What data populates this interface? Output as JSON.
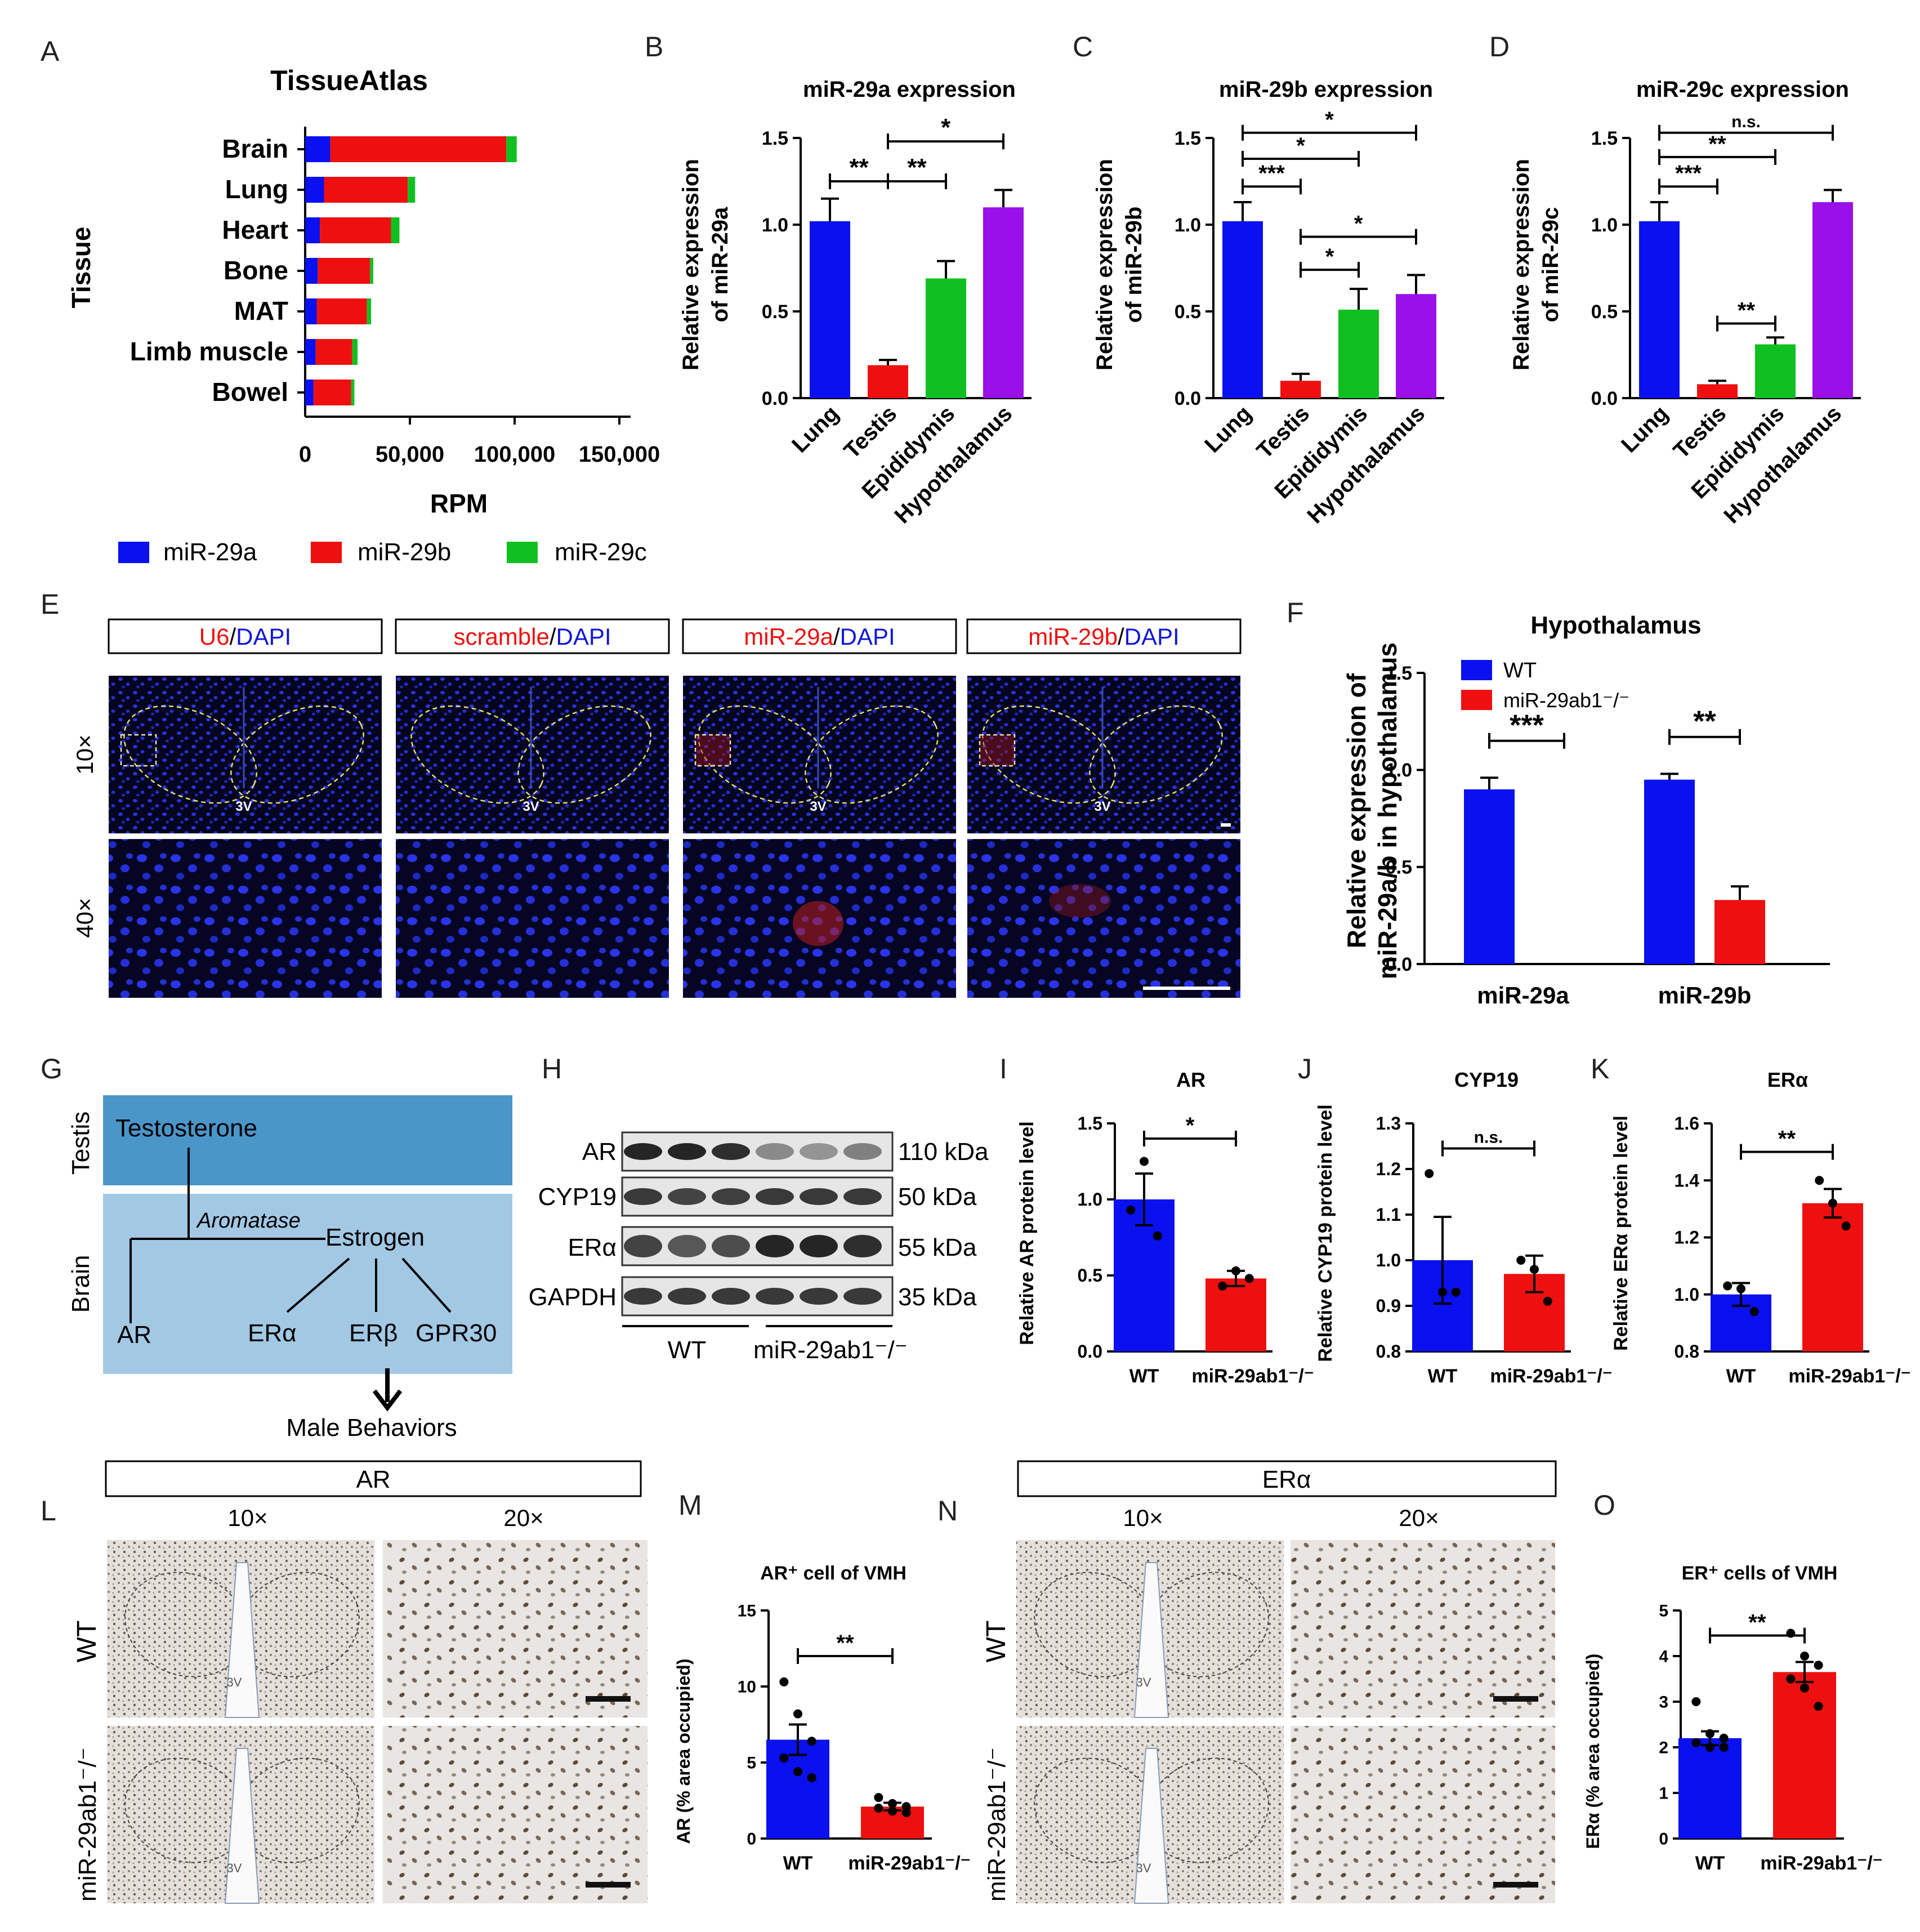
{
  "colors": {
    "blue": "#0a10ee",
    "red": "#ee1010",
    "green": "#10c021",
    "purple": "#9a10e8",
    "dapi": "#1018d8",
    "testis_box": "#4a96c9",
    "brain_box": "#a2c8e4"
  },
  "panel_letters": [
    "A",
    "B",
    "C",
    "D",
    "E",
    "F",
    "G",
    "H",
    "I",
    "J",
    "K",
    "L",
    "M",
    "N",
    "O"
  ],
  "A": {
    "title": "TissueAtlas",
    "ylabel": "Tissue",
    "xlabel": "RPM",
    "ticks": [
      "0",
      "50,000",
      "100,000",
      "150,000"
    ],
    "legend": [
      "miR-29a",
      "miR-29b",
      "miR-29c"
    ]
  },
  "qpcr_bars": {
    "ylabel_prefix": "Relative expression",
    "ylabel_b": "of miR-29a",
    "ylabel_c": "of miR-29b",
    "ylabel_d": "of miR-29c",
    "yticks": [
      "0.0",
      "0.5",
      "1.0",
      "1.5"
    ],
    "categories": [
      "Lung",
      "Testis",
      "Epididymis",
      "Hypothalamus"
    ]
  },
  "sig": {
    "two": "**",
    "three": "***",
    "one": "*",
    "ns": "n.s."
  },
  "E": {
    "labels": [
      {
        "red": "U6",
        "sep": "/",
        "blue": "DAPI"
      },
      {
        "red": "scramble",
        "sep": "/",
        "blue": "DAPI"
      },
      {
        "red": "miR-29a",
        "sep": "/",
        "blue": "DAPI"
      },
      {
        "red": "miR-29b",
        "sep": "/",
        "blue": "DAPI"
      }
    ],
    "mag10": "10×",
    "mag40": "40×",
    "v3": "3V"
  },
  "F": {
    "title": "Hypothalamus",
    "ylabel1": "Relative expression of",
    "ylabel2": "miR-29a/b in hypothalamus",
    "yticks": [
      "0.0",
      "0.5",
      "1.0",
      "1.5"
    ],
    "legend_wt": "WT",
    "legend_ko": "miR-29ab1⁻/⁻",
    "categories": [
      "miR-29a",
      "miR-29b"
    ]
  },
  "G": {
    "testis": "Testis",
    "brain": "Brain",
    "testosterone": "Testosterone",
    "aromatase": "Aromatase",
    "estrogen": "Estrogen",
    "ar": "AR",
    "era": "ERα",
    "erb": "ERβ",
    "gpr30": "GPR30",
    "behaviors": "Male Behaviors"
  },
  "H": {
    "rows": [
      "AR",
      "CYP19",
      "ERα",
      "GAPDH"
    ],
    "kda": [
      "110 kDa",
      "50 kDa",
      "55 kDa",
      "35 kDa"
    ],
    "wt": "WT",
    "ko": "miR-29ab1⁻/⁻"
  },
  "I": {
    "title": "AR",
    "ylabel": "Relative AR protein level",
    "yticks": [
      "0.0",
      "0.5",
      "1.0",
      "1.5"
    ],
    "x": [
      "WT",
      "miR-29ab1⁻/⁻"
    ]
  },
  "J": {
    "title": "CYP19",
    "ylabel": "Relative CYP19 protein level",
    "yticks": [
      "0.8",
      "0.9",
      "1.0",
      "1.1",
      "1.2",
      "1.3"
    ],
    "x": [
      "WT",
      "miR-29ab1⁻/⁻"
    ]
  },
  "K": {
    "title": "ERα",
    "ylabel": "Relative ERα protein level",
    "yticks": [
      "0.8",
      "1.0",
      "1.2",
      "1.4",
      "1.6"
    ],
    "x": [
      "WT",
      "miR-29ab1⁻/⁻"
    ]
  },
  "L": {
    "header": "AR",
    "mag10": "10×",
    "mag20": "20×",
    "wt": "WT",
    "ko": "miR-29ab1⁻/⁻",
    "v3": "3V"
  },
  "M": {
    "title": "AR⁺ cell of VMH",
    "ylabel": "AR (% area occupied)",
    "yticks": [
      "0",
      "5",
      "10",
      "15"
    ],
    "x": [
      "WT",
      "miR-29ab1⁻/⁻"
    ]
  },
  "N": {
    "header": "ERα",
    "mag10": "10×",
    "mag20": "20×",
    "wt": "WT",
    "ko": "miR-29ab1⁻/⁻",
    "v3": "3V"
  },
  "O": {
    "title": "ER⁺ cells of VMH",
    "ylabel": "ERα (% area occupied)",
    "yticks": [
      "0",
      "1",
      "2",
      "3",
      "4",
      "5"
    ],
    "x": [
      "WT",
      "miR-29ab1⁻/⁻"
    ]
  },
  "chart_data": [
    {
      "panel": "A",
      "type": "bar",
      "title": "TissueAtlas",
      "xlabel": "RPM",
      "ylabel": "Tissue",
      "xlim": [
        0,
        150000
      ],
      "categories": [
        "Brain",
        "Lung",
        "Heart",
        "Bone",
        "MAT",
        "Limb muscle",
        "Bowel"
      ],
      "series": [
        {
          "name": "miR-29a",
          "values": [
            12000,
            9000,
            7000,
            6000,
            5500,
            5000,
            4000
          ]
        },
        {
          "name": "miR-29b",
          "values": [
            84000,
            40000,
            34000,
            25000,
            24000,
            17500,
            18000
          ]
        },
        {
          "name": "miR-29c",
          "values": [
            5000,
            3500,
            4000,
            1500,
            2000,
            2500,
            1500
          ]
        }
      ]
    },
    {
      "panel": "B",
      "type": "bar",
      "title": "miR-29a expression",
      "ylim": [
        0,
        1.5
      ],
      "categories": [
        "Lung",
        "Testis",
        "Epididymis",
        "Hypothalamus"
      ],
      "values": [
        1.02,
        0.19,
        0.69,
        1.1
      ],
      "errors": [
        0.13,
        0.03,
        0.1,
        0.1
      ]
    },
    {
      "panel": "C",
      "type": "bar",
      "title": "miR-29b expression",
      "ylim": [
        0,
        1.5
      ],
      "categories": [
        "Lung",
        "Testis",
        "Epididymis",
        "Hypothalamus"
      ],
      "values": [
        1.02,
        0.1,
        0.51,
        0.6
      ],
      "errors": [
        0.11,
        0.04,
        0.12,
        0.11
      ]
    },
    {
      "panel": "D",
      "type": "bar",
      "title": "miR-29c expression",
      "ylim": [
        0,
        1.5
      ],
      "categories": [
        "Lung",
        "Testis",
        "Epididymis",
        "Hypothalamus"
      ],
      "values": [
        1.02,
        0.08,
        0.31,
        1.13
      ],
      "errors": [
        0.11,
        0.02,
        0.04,
        0.07
      ]
    },
    {
      "panel": "F",
      "type": "bar",
      "title": "Hypothalamus",
      "ylim": [
        0,
        1.5
      ],
      "categories": [
        "miR-29a",
        "miR-29b"
      ],
      "series": [
        {
          "name": "WT",
          "values": [
            0.9,
            0.95
          ],
          "errors": [
            0.06,
            0.03
          ]
        },
        {
          "name": "miR-29ab1⁻/⁻",
          "values": [
            0.0,
            0.33
          ],
          "errors": [
            0,
            0.07
          ]
        }
      ]
    },
    {
      "panel": "I",
      "type": "bar",
      "title": "AR",
      "ylim": [
        0,
        1.5
      ],
      "categories": [
        "WT",
        "miR-29ab1⁻/⁻"
      ],
      "values": [
        1.0,
        0.48
      ],
      "errors": [
        0.17,
        0.05
      ],
      "points": [
        [
          0.93,
          1.25,
          0.76
        ],
        [
          0.43,
          0.53,
          0.48
        ]
      ]
    },
    {
      "panel": "J",
      "type": "bar",
      "title": "CYP19",
      "ylim": [
        0.8,
        1.3
      ],
      "categories": [
        "WT",
        "miR-29ab1⁻/⁻"
      ],
      "values": [
        1.0,
        0.97
      ],
      "errors": [
        0.095,
        0.04
      ],
      "points": [
        [
          1.19,
          0.93,
          0.93
        ],
        [
          1.0,
          0.98,
          0.91
        ]
      ]
    },
    {
      "panel": "K",
      "type": "bar",
      "title": "ERα",
      "ylim": [
        0.8,
        1.6
      ],
      "categories": [
        "WT",
        "miR-29ab1⁻/⁻"
      ],
      "values": [
        1.0,
        1.32
      ],
      "errors": [
        0.04,
        0.05
      ],
      "points": [
        [
          1.03,
          1.02,
          0.94
        ],
        [
          1.4,
          1.32,
          1.24
        ]
      ]
    },
    {
      "panel": "M",
      "type": "bar",
      "title": "AR⁺ cell of VMH",
      "ylim": [
        0,
        15
      ],
      "categories": [
        "WT",
        "miR-29ab1⁻/⁻"
      ],
      "values": [
        6.5,
        2.1
      ],
      "errors": [
        1.0,
        0.25
      ],
      "points": [
        [
          10.3,
          8.2,
          6.4,
          5.3,
          4.4,
          4.0
        ],
        [
          2.7,
          2.3,
          2.1,
          2.0,
          1.8,
          1.7
        ]
      ]
    },
    {
      "panel": "O",
      "type": "bar",
      "title": "ER⁺ cells of VMH",
      "ylim": [
        0,
        5
      ],
      "categories": [
        "WT",
        "miR-29ab1⁻/⁻"
      ],
      "values": [
        2.2,
        3.65
      ],
      "errors": [
        0.15,
        0.22
      ],
      "points": [
        [
          3.0,
          2.3,
          2.2,
          2.1,
          2.0,
          2.0
        ],
        [
          4.5,
          4.0,
          3.8,
          3.5,
          3.3,
          2.9
        ]
      ]
    }
  ]
}
